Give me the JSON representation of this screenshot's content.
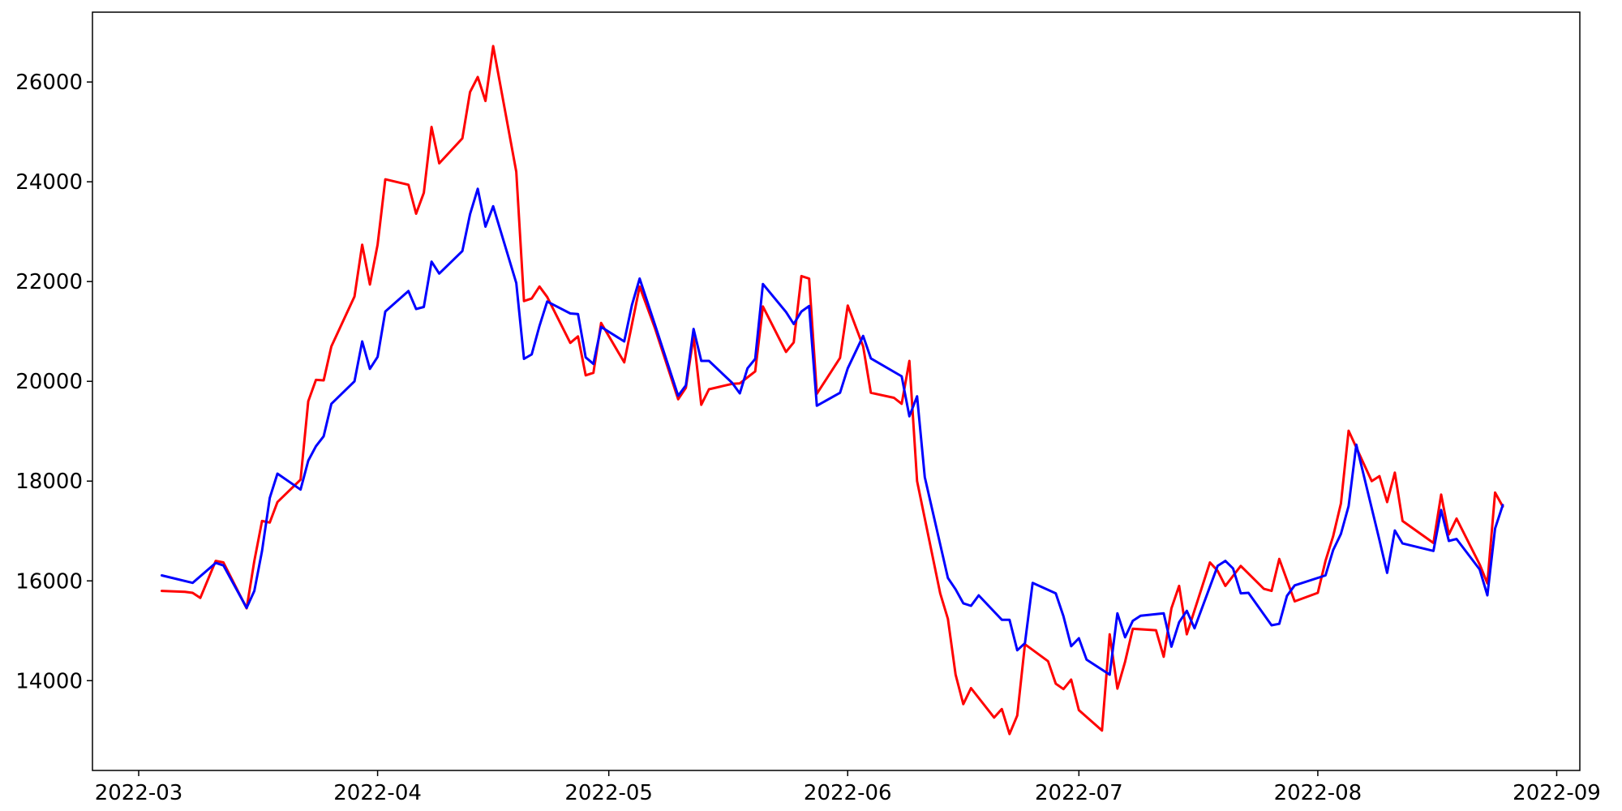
{
  "chart_data": {
    "type": "line",
    "title": "",
    "xlabel": "",
    "ylabel": "",
    "x_axis_type": "date",
    "xlim": [
      "2022-02-23",
      "2022-09-04"
    ],
    "ylim": [
      12200,
      27400
    ],
    "x_ticks": [
      "2022-03-01",
      "2022-04-01",
      "2022-05-01",
      "2022-06-01",
      "2022-07-01",
      "2022-08-01",
      "2022-09-01"
    ],
    "x_tick_labels": [
      "2022-03",
      "2022-04",
      "2022-05",
      "2022-06",
      "2022-07",
      "2022-08",
      "2022-09"
    ],
    "y_ticks": [
      14000,
      16000,
      18000,
      20000,
      22000,
      24000,
      26000
    ],
    "y_tick_labels": [
      "14000",
      "16000",
      "18000",
      "20000",
      "22000",
      "24000",
      "26000"
    ],
    "grid": false,
    "legend": "none",
    "series": [
      {
        "color": "#ff0000",
        "points": [
          [
            "2022-03-04",
            15800
          ],
          [
            "2022-03-07",
            15780
          ],
          [
            "2022-03-08",
            15760
          ],
          [
            "2022-03-09",
            15660
          ],
          [
            "2022-03-11",
            16400
          ],
          [
            "2022-03-12",
            16370
          ],
          [
            "2022-03-15",
            15450
          ],
          [
            "2022-03-16",
            16400
          ],
          [
            "2022-03-17",
            17200
          ],
          [
            "2022-03-18",
            17170
          ],
          [
            "2022-03-19",
            17580
          ],
          [
            "2022-03-22",
            18030
          ],
          [
            "2022-03-23",
            19600
          ],
          [
            "2022-03-24",
            20030
          ],
          [
            "2022-03-25",
            20020
          ],
          [
            "2022-03-26",
            20700
          ],
          [
            "2022-03-29",
            21700
          ],
          [
            "2022-03-30",
            22740
          ],
          [
            "2022-03-31",
            21940
          ],
          [
            "2022-04-01",
            22740
          ],
          [
            "2022-04-02",
            24050
          ],
          [
            "2022-04-05",
            23940
          ],
          [
            "2022-04-06",
            23360
          ],
          [
            "2022-04-07",
            23780
          ],
          [
            "2022-04-08",
            25100
          ],
          [
            "2022-04-09",
            24370
          ],
          [
            "2022-04-12",
            24870
          ],
          [
            "2022-04-13",
            25800
          ],
          [
            "2022-04-14",
            26100
          ],
          [
            "2022-04-15",
            25620
          ],
          [
            "2022-04-16",
            26720
          ],
          [
            "2022-04-19",
            24200
          ],
          [
            "2022-04-20",
            21610
          ],
          [
            "2022-04-21",
            21660
          ],
          [
            "2022-04-22",
            21900
          ],
          [
            "2022-04-23",
            21690
          ],
          [
            "2022-04-26",
            20770
          ],
          [
            "2022-04-27",
            20900
          ],
          [
            "2022-04-28",
            20120
          ],
          [
            "2022-04-29",
            20170
          ],
          [
            "2022-04-30",
            21170
          ],
          [
            "2022-05-03",
            20380
          ],
          [
            "2022-05-05",
            21900
          ],
          [
            "2022-05-07",
            21060
          ],
          [
            "2022-05-10",
            19640
          ],
          [
            "2022-05-11",
            19870
          ],
          [
            "2022-05-12",
            20900
          ],
          [
            "2022-05-13",
            19530
          ],
          [
            "2022-05-14",
            19840
          ],
          [
            "2022-05-17",
            19950
          ],
          [
            "2022-05-18",
            19960
          ],
          [
            "2022-05-20",
            20200
          ],
          [
            "2022-05-21",
            21500
          ],
          [
            "2022-05-24",
            20590
          ],
          [
            "2022-05-25",
            20780
          ],
          [
            "2022-05-26",
            22110
          ],
          [
            "2022-05-27",
            22060
          ],
          [
            "2022-05-28",
            19750
          ],
          [
            "2022-05-31",
            20470
          ],
          [
            "2022-06-01",
            21520
          ],
          [
            "2022-06-03",
            20700
          ],
          [
            "2022-06-04",
            19770
          ],
          [
            "2022-06-07",
            19670
          ],
          [
            "2022-06-08",
            19550
          ],
          [
            "2022-06-09",
            20410
          ],
          [
            "2022-06-10",
            18000
          ],
          [
            "2022-06-13",
            15750
          ],
          [
            "2022-06-14",
            15240
          ],
          [
            "2022-06-15",
            14120
          ],
          [
            "2022-06-16",
            13530
          ],
          [
            "2022-06-17",
            13850
          ],
          [
            "2022-06-20",
            13260
          ],
          [
            "2022-06-21",
            13430
          ],
          [
            "2022-06-22",
            12930
          ],
          [
            "2022-06-23",
            13300
          ],
          [
            "2022-06-24",
            14730
          ],
          [
            "2022-06-27",
            14390
          ],
          [
            "2022-06-28",
            13940
          ],
          [
            "2022-06-29",
            13830
          ],
          [
            "2022-06-30",
            14020
          ],
          [
            "2022-07-01",
            13410
          ],
          [
            "2022-07-04",
            13000
          ],
          [
            "2022-07-05",
            14930
          ],
          [
            "2022-07-06",
            13840
          ],
          [
            "2022-07-07",
            14380
          ],
          [
            "2022-07-08",
            15040
          ],
          [
            "2022-07-11",
            15010
          ],
          [
            "2022-07-12",
            14480
          ],
          [
            "2022-07-13",
            15450
          ],
          [
            "2022-07-14",
            15900
          ],
          [
            "2022-07-15",
            14930
          ],
          [
            "2022-07-18",
            16370
          ],
          [
            "2022-07-19",
            16200
          ],
          [
            "2022-07-20",
            15900
          ],
          [
            "2022-07-22",
            16300
          ],
          [
            "2022-07-25",
            15840
          ],
          [
            "2022-07-26",
            15800
          ],
          [
            "2022-07-27",
            16440
          ],
          [
            "2022-07-29",
            15590
          ],
          [
            "2022-08-01",
            15760
          ],
          [
            "2022-08-02",
            16400
          ],
          [
            "2022-08-03",
            16900
          ],
          [
            "2022-08-04",
            17550
          ],
          [
            "2022-08-05",
            19010
          ],
          [
            "2022-08-08",
            18000
          ],
          [
            "2022-08-09",
            18100
          ],
          [
            "2022-08-10",
            17580
          ],
          [
            "2022-08-11",
            18170
          ],
          [
            "2022-08-12",
            17200
          ],
          [
            "2022-08-16",
            16760
          ],
          [
            "2022-08-17",
            17730
          ],
          [
            "2022-08-18",
            16930
          ],
          [
            "2022-08-19",
            17250
          ],
          [
            "2022-08-22",
            16330
          ],
          [
            "2022-08-23",
            15950
          ],
          [
            "2022-08-24",
            17770
          ],
          [
            "2022-08-25",
            17490
          ]
        ]
      },
      {
        "color": "#0000ff",
        "points": [
          [
            "2022-03-04",
            16110
          ],
          [
            "2022-03-08",
            15960
          ],
          [
            "2022-03-11",
            16360
          ],
          [
            "2022-03-12",
            16310
          ],
          [
            "2022-03-15",
            15460
          ],
          [
            "2022-03-16",
            15800
          ],
          [
            "2022-03-17",
            16600
          ],
          [
            "2022-03-18",
            17660
          ],
          [
            "2022-03-19",
            18150
          ],
          [
            "2022-03-22",
            17830
          ],
          [
            "2022-03-23",
            18410
          ],
          [
            "2022-03-24",
            18700
          ],
          [
            "2022-03-25",
            18900
          ],
          [
            "2022-03-26",
            19550
          ],
          [
            "2022-03-29",
            20000
          ],
          [
            "2022-03-30",
            20800
          ],
          [
            "2022-03-31",
            20250
          ],
          [
            "2022-04-01",
            20490
          ],
          [
            "2022-04-02",
            21400
          ],
          [
            "2022-04-05",
            21810
          ],
          [
            "2022-04-06",
            21450
          ],
          [
            "2022-04-07",
            21490
          ],
          [
            "2022-04-08",
            22400
          ],
          [
            "2022-04-09",
            22160
          ],
          [
            "2022-04-12",
            22610
          ],
          [
            "2022-04-13",
            23350
          ],
          [
            "2022-04-14",
            23860
          ],
          [
            "2022-04-15",
            23100
          ],
          [
            "2022-04-16",
            23510
          ],
          [
            "2022-04-19",
            21970
          ],
          [
            "2022-04-20",
            20450
          ],
          [
            "2022-04-21",
            20540
          ],
          [
            "2022-04-22",
            21110
          ],
          [
            "2022-04-23",
            21600
          ],
          [
            "2022-04-26",
            21360
          ],
          [
            "2022-04-27",
            21350
          ],
          [
            "2022-04-28",
            20480
          ],
          [
            "2022-04-29",
            20350
          ],
          [
            "2022-04-30",
            21090
          ],
          [
            "2022-05-03",
            20800
          ],
          [
            "2022-05-04",
            21530
          ],
          [
            "2022-05-05",
            22060
          ],
          [
            "2022-05-07",
            21130
          ],
          [
            "2022-05-10",
            19710
          ],
          [
            "2022-05-11",
            19920
          ],
          [
            "2022-05-12",
            21050
          ],
          [
            "2022-05-13",
            20410
          ],
          [
            "2022-05-14",
            20410
          ],
          [
            "2022-05-17",
            19970
          ],
          [
            "2022-05-18",
            19760
          ],
          [
            "2022-05-19",
            20260
          ],
          [
            "2022-05-20",
            20450
          ],
          [
            "2022-05-21",
            21950
          ],
          [
            "2022-05-24",
            21390
          ],
          [
            "2022-05-25",
            21150
          ],
          [
            "2022-05-26",
            21400
          ],
          [
            "2022-05-27",
            21510
          ],
          [
            "2022-05-28",
            19510
          ],
          [
            "2022-05-31",
            19770
          ],
          [
            "2022-06-01",
            20260
          ],
          [
            "2022-06-03",
            20910
          ],
          [
            "2022-06-04",
            20460
          ],
          [
            "2022-06-08",
            20100
          ],
          [
            "2022-06-09",
            19300
          ],
          [
            "2022-06-10",
            19700
          ],
          [
            "2022-06-11",
            18080
          ],
          [
            "2022-06-14",
            16060
          ],
          [
            "2022-06-15",
            15830
          ],
          [
            "2022-06-16",
            15550
          ],
          [
            "2022-06-17",
            15500
          ],
          [
            "2022-06-18",
            15710
          ],
          [
            "2022-06-21",
            15220
          ],
          [
            "2022-06-22",
            15220
          ],
          [
            "2022-06-23",
            14610
          ],
          [
            "2022-06-24",
            14750
          ],
          [
            "2022-06-25",
            15960
          ],
          [
            "2022-06-28",
            15750
          ],
          [
            "2022-06-29",
            15290
          ],
          [
            "2022-06-30",
            14690
          ],
          [
            "2022-07-01",
            14850
          ],
          [
            "2022-07-02",
            14420
          ],
          [
            "2022-07-05",
            14120
          ],
          [
            "2022-07-06",
            15350
          ],
          [
            "2022-07-07",
            14870
          ],
          [
            "2022-07-08",
            15200
          ],
          [
            "2022-07-09",
            15300
          ],
          [
            "2022-07-12",
            15350
          ],
          [
            "2022-07-13",
            14680
          ],
          [
            "2022-07-14",
            15170
          ],
          [
            "2022-07-15",
            15400
          ],
          [
            "2022-07-16",
            15050
          ],
          [
            "2022-07-19",
            16300
          ],
          [
            "2022-07-20",
            16400
          ],
          [
            "2022-07-21",
            16250
          ],
          [
            "2022-07-22",
            15750
          ],
          [
            "2022-07-23",
            15760
          ],
          [
            "2022-07-26",
            15110
          ],
          [
            "2022-07-27",
            15140
          ],
          [
            "2022-07-28",
            15700
          ],
          [
            "2022-07-29",
            15910
          ],
          [
            "2022-08-02",
            16110
          ],
          [
            "2022-08-03",
            16620
          ],
          [
            "2022-08-04",
            16940
          ],
          [
            "2022-08-05",
            17500
          ],
          [
            "2022-08-06",
            18730
          ],
          [
            "2022-08-09",
            16820
          ],
          [
            "2022-08-10",
            16160
          ],
          [
            "2022-08-11",
            17010
          ],
          [
            "2022-08-12",
            16750
          ],
          [
            "2022-08-16",
            16600
          ],
          [
            "2022-08-17",
            17420
          ],
          [
            "2022-08-18",
            16800
          ],
          [
            "2022-08-19",
            16840
          ],
          [
            "2022-08-22",
            16230
          ],
          [
            "2022-08-23",
            15710
          ],
          [
            "2022-08-24",
            17050
          ],
          [
            "2022-08-25",
            17520
          ]
        ]
      }
    ]
  }
}
